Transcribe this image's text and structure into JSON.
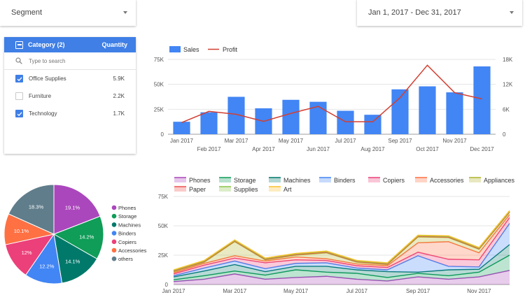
{
  "segment": {
    "label": "Segment"
  },
  "date_range": {
    "label": "Jan 1, 2017 - Dec 31, 2017"
  },
  "category_filter": {
    "header": "Category (2)",
    "metric": "Quantity",
    "search_placeholder": "Type to search",
    "items": [
      {
        "label": "Office Supplies",
        "value": "5.9K",
        "checked": true
      },
      {
        "label": "Furniture",
        "value": "2.2K",
        "checked": false
      },
      {
        "label": "Technology",
        "value": "1.7K",
        "checked": true
      }
    ]
  },
  "colors": {
    "accent": "#3f7fe6",
    "bar": "#4285f4",
    "profit": "#d23f31"
  },
  "chart_data": [
    {
      "type": "bar",
      "legend": [
        "Sales",
        "Profit"
      ],
      "categories": [
        "Jan 2017",
        "Feb 2017",
        "Mar 2017",
        "Apr 2017",
        "May 2017",
        "Jun 2017",
        "Jul 2017",
        "Aug 2017",
        "Sep 2017",
        "Oct 2017",
        "Nov 2017",
        "Dec 2017"
      ],
      "left_ticks": [
        "0",
        "25K",
        "50K",
        "75K"
      ],
      "right_ticks": [
        "0",
        "6K",
        "12K",
        "18K"
      ],
      "ylim": [
        0,
        75000
      ],
      "y2lim": [
        0,
        18000
      ],
      "series": [
        {
          "name": "Sales",
          "axis": "left",
          "kind": "bar",
          "values": [
            12500,
            22000,
            37500,
            26000,
            34500,
            32500,
            23500,
            19500,
            45000,
            48000,
            42000,
            68000
          ]
        },
        {
          "name": "Profit",
          "axis": "right",
          "kind": "line",
          "values": [
            2800,
            5500,
            4800,
            3100,
            5000,
            6700,
            3000,
            3000,
            8800,
            16600,
            10000,
            8500
          ]
        }
      ]
    },
    {
      "type": "pie",
      "legend": [
        "Phones",
        "Storage",
        "Machines",
        "Binders",
        "Copiers",
        "Accessories",
        "others"
      ],
      "series": [
        {
          "name": "Phones",
          "value": 19.1,
          "label": "19.1%",
          "color": "#ab47bc"
        },
        {
          "name": "Storage",
          "value": 14.2,
          "label": "14.2%",
          "color": "#0f9d58"
        },
        {
          "name": "Machines",
          "value": 14.1,
          "label": "14.1%",
          "color": "#00796b"
        },
        {
          "name": "Binders",
          "value": 12.2,
          "label": "12.2%",
          "color": "#4285f4"
        },
        {
          "name": "Copiers",
          "value": 12.0,
          "label": "12%",
          "color": "#ec407a"
        },
        {
          "name": "Accessories",
          "value": 10.1,
          "label": "10.1%",
          "color": "#ff7043"
        },
        {
          "name": "others",
          "value": 18.3,
          "label": "18.3%",
          "color": "#607d8b"
        }
      ]
    },
    {
      "type": "area",
      "stacked": true,
      "categories": [
        "Jan 2017",
        "Feb 2017",
        "Mar 2017",
        "Apr 2017",
        "May 2017",
        "Jun 2017",
        "Jul 2017",
        "Aug 2017",
        "Sep 2017",
        "Oct 2017",
        "Nov 2017",
        "Dec 2017"
      ],
      "x_ticks": [
        "Jan 2017",
        "Mar 2017",
        "May 2017",
        "Jul 2017",
        "Sep 2017",
        "Nov 2017"
      ],
      "y_ticks": [
        "0",
        "25K",
        "50K",
        "75K"
      ],
      "ylim": [
        0,
        75000
      ],
      "series": [
        {
          "name": "Phones",
          "color": "#ab47bc",
          "values": [
            2500,
            4500,
            9000,
            4500,
            6000,
            7000,
            4500,
            3000,
            6500,
            4500,
            6500,
            12000
          ]
        },
        {
          "name": "Storage",
          "color": "#0f9d58",
          "values": [
            1500,
            3000,
            2500,
            3500,
            6500,
            3500,
            5000,
            3000,
            3000,
            3000,
            4000,
            13000
          ]
        },
        {
          "name": "Machines",
          "color": "#00796b",
          "values": [
            2500,
            4000,
            5500,
            3000,
            3000,
            5000,
            3000,
            5000,
            1000,
            5000,
            2500,
            9000
          ]
        },
        {
          "name": "Binders",
          "color": "#4285f4",
          "values": [
            1000,
            2500,
            3000,
            2500,
            2500,
            3000,
            1500,
            1500,
            14000,
            3000,
            2000,
            18000
          ]
        },
        {
          "name": "Copiers",
          "color": "#ec407a",
          "values": [
            1500,
            2500,
            2500,
            5000,
            3000,
            2000,
            2000,
            2000,
            3000,
            6000,
            6000,
            5000
          ]
        },
        {
          "name": "Accessories",
          "color": "#ff7043",
          "values": [
            1000,
            1500,
            2000,
            1500,
            2500,
            1500,
            1500,
            1500,
            8000,
            15000,
            6000,
            2500
          ]
        },
        {
          "name": "Appliances",
          "color": "#afb42b",
          "values": [
            1000,
            1000,
            12000,
            1000,
            1500,
            5000,
            1500,
            1000,
            5000,
            3500,
            3000,
            2000
          ]
        },
        {
          "name": "Paper",
          "color": "#ef5350",
          "values": [
            500,
            500,
            500,
            500,
            500,
            500,
            500,
            500,
            500,
            500,
            500,
            500
          ]
        },
        {
          "name": "Supplies",
          "color": "#8bc34a",
          "values": [
            500,
            500,
            500,
            500,
            500,
            500,
            500,
            500,
            500,
            500,
            500,
            500
          ]
        },
        {
          "name": "Art",
          "color": "#fbc02d",
          "values": [
            500,
            500,
            500,
            500,
            500,
            500,
            500,
            500,
            500,
            500,
            500,
            500
          ]
        }
      ]
    }
  ]
}
